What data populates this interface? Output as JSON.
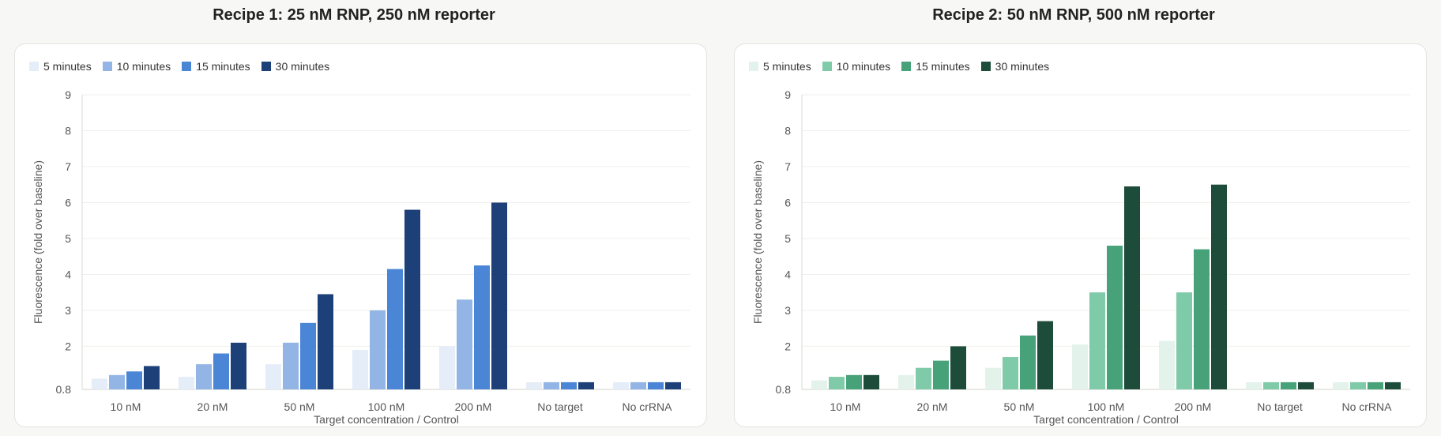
{
  "panels": [
    {
      "title": "Recipe 1: 25 nM RNP, 250 nM reporter",
      "series_colors": [
        "#e5edf9",
        "#93b5e6",
        "#4a85d6",
        "#1d4079"
      ],
      "chart_data": {
        "type": "bar",
        "title": "Recipe 1: 25 nM RNP, 250 nM reporter",
        "xlabel": "Target concentration / Control",
        "ylabel": "Fluorescence (fold over baseline)",
        "ylim": [
          0.8,
          9
        ],
        "yticks": [
          "0.8",
          "2",
          "3",
          "4",
          "5",
          "6",
          "7",
          "8",
          "9"
        ],
        "categories": [
          "10 nM",
          "20 nM",
          "50 nM",
          "100 nM",
          "200 nM",
          "No target",
          "No crRNA"
        ],
        "legend_position": "top-left",
        "grid": true,
        "series": [
          {
            "name": "5 minutes",
            "values": [
              1.1,
              1.15,
              1.5,
              1.9,
              2.0,
              1.0,
              1.0
            ]
          },
          {
            "name": "10 minutes",
            "values": [
              1.2,
              1.5,
              2.1,
              3.0,
              3.3,
              1.0,
              1.0
            ]
          },
          {
            "name": "15 minutes",
            "values": [
              1.3,
              1.8,
              2.65,
              4.15,
              4.25,
              1.0,
              1.0
            ]
          },
          {
            "name": "30 minutes",
            "values": [
              1.45,
              2.1,
              3.45,
              5.8,
              6.0,
              1.0,
              1.0
            ]
          }
        ]
      }
    },
    {
      "title": "Recipe 2: 50 nM RNP, 500 nM reporter",
      "series_colors": [
        "#e3f3ec",
        "#7fcaa8",
        "#47a27a",
        "#1d4c3b"
      ],
      "chart_data": {
        "type": "bar",
        "title": "Recipe 2: 50 nM RNP, 500 nM reporter",
        "xlabel": "Target concentration / Control",
        "ylabel": "Fluorescence (fold over baseline)",
        "ylim": [
          0.8,
          9
        ],
        "yticks": [
          "0.8",
          "2",
          "3",
          "4",
          "5",
          "6",
          "7",
          "8",
          "9"
        ],
        "categories": [
          "10 nM",
          "20 nM",
          "50 nM",
          "100 nM",
          "200 nM",
          "No target",
          "No crRNA"
        ],
        "legend_position": "top-left",
        "grid": true,
        "series": [
          {
            "name": "5 minutes",
            "values": [
              1.05,
              1.2,
              1.4,
              2.05,
              2.15,
              1.0,
              1.0
            ]
          },
          {
            "name": "10 minutes",
            "values": [
              1.15,
              1.4,
              1.7,
              3.5,
              3.5,
              1.0,
              1.0
            ]
          },
          {
            "name": "15 minutes",
            "values": [
              1.2,
              1.6,
              2.3,
              4.8,
              4.7,
              1.0,
              1.0
            ]
          },
          {
            "name": "30 minutes",
            "values": [
              1.2,
              2.0,
              2.7,
              6.45,
              6.5,
              1.0,
              1.0
            ]
          }
        ]
      }
    }
  ]
}
